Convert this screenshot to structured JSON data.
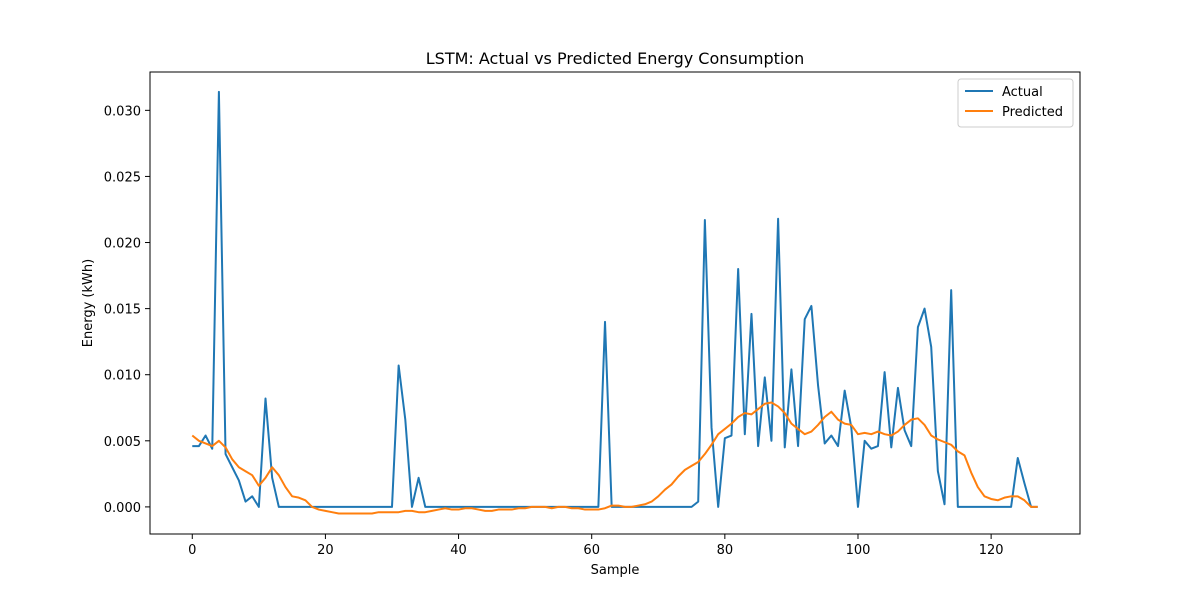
{
  "chart_data": {
    "type": "line",
    "title": "LSTM: Actual vs Predicted Energy Consumption",
    "xlabel": "Sample",
    "ylabel": "Energy (kWh)",
    "xlim": [
      -6.35,
      133.35
    ],
    "ylim": [
      -0.00205,
      0.0329
    ],
    "x_ticks": [
      0,
      20,
      40,
      60,
      80,
      100,
      120
    ],
    "x_tick_labels": [
      "0",
      "20",
      "40",
      "60",
      "80",
      "100",
      "120"
    ],
    "y_ticks": [
      0.0,
      0.005,
      0.01,
      0.015,
      0.02,
      0.025,
      0.03
    ],
    "y_tick_labels": [
      "0.000",
      "0.005",
      "0.010",
      "0.015",
      "0.020",
      "0.025",
      "0.030"
    ],
    "grid": false,
    "legend_position": "top-right",
    "series": [
      {
        "name": "Actual",
        "color": "#1f77b4",
        "values": [
          0.0046,
          0.0046,
          0.0054,
          0.0044,
          0.0314,
          0.004,
          0.003,
          0.002,
          0.0004,
          0.0008,
          0.0,
          0.0082,
          0.0022,
          0.0,
          0.0,
          0.0,
          0.0,
          0.0,
          0.0,
          0.0,
          0.0,
          0.0,
          0.0,
          0.0,
          0.0,
          0.0,
          0.0,
          0.0,
          0.0,
          0.0,
          0.0,
          0.0107,
          0.0066,
          0.0,
          0.0022,
          0.0,
          0.0,
          0.0,
          0.0,
          0.0,
          0.0,
          0.0,
          0.0,
          0.0,
          0.0,
          0.0,
          0.0,
          0.0,
          0.0,
          0.0,
          0.0,
          0.0,
          0.0,
          0.0,
          0.0,
          0.0,
          0.0,
          0.0,
          0.0,
          0.0,
          0.0,
          0.0,
          0.014,
          0.0,
          0.0,
          0.0,
          0.0,
          0.0,
          0.0,
          0.0,
          0.0,
          0.0,
          0.0,
          0.0,
          0.0,
          0.0,
          0.0004,
          0.0217,
          0.006,
          0.0,
          0.0052,
          0.0054,
          0.018,
          0.0055,
          0.0146,
          0.0046,
          0.0098,
          0.005,
          0.0218,
          0.0045,
          0.0104,
          0.0046,
          0.0142,
          0.0152,
          0.0092,
          0.0048,
          0.0054,
          0.0046,
          0.0088,
          0.006,
          0.0,
          0.005,
          0.0044,
          0.0046,
          0.0102,
          0.0045,
          0.009,
          0.0058,
          0.0046,
          0.0136,
          0.015,
          0.0121,
          0.0027,
          0.0002,
          0.0164,
          0.0,
          0.0,
          0.0,
          0.0,
          0.0,
          0.0,
          0.0,
          0.0,
          0.0,
          0.0037,
          0.0018,
          0.0,
          0.0
        ]
      },
      {
        "name": "Predicted",
        "color": "#ff7f0e",
        "values": [
          0.0054,
          0.005,
          0.0048,
          0.0046,
          0.005,
          0.0045,
          0.0036,
          0.003,
          0.0027,
          0.0024,
          0.0016,
          0.0022,
          0.003,
          0.0024,
          0.0015,
          0.0008,
          0.0007,
          0.0005,
          0.0,
          -0.0002,
          -0.0003,
          -0.0004,
          -0.0005,
          -0.0005,
          -0.0005,
          -0.0005,
          -0.0005,
          -0.0005,
          -0.0004,
          -0.0004,
          -0.0004,
          -0.0004,
          -0.0003,
          -0.0003,
          -0.0004,
          -0.0004,
          -0.0003,
          -0.0002,
          -0.0001,
          -0.0002,
          -0.0002,
          -0.0001,
          -0.0001,
          -0.0002,
          -0.0003,
          -0.0003,
          -0.0002,
          -0.0002,
          -0.0002,
          -0.0001,
          -0.0001,
          0.0,
          0.0,
          0.0,
          -0.0001,
          0.0,
          0.0,
          -0.0001,
          -0.0001,
          -0.0002,
          -0.0002,
          -0.0002,
          -0.0001,
          0.0001,
          0.0001,
          0.0,
          0.0,
          0.0001,
          0.0002,
          0.0004,
          0.0008,
          0.0013,
          0.0017,
          0.0023,
          0.0028,
          0.0031,
          0.0034,
          0.004,
          0.0047,
          0.0055,
          0.0059,
          0.0063,
          0.0068,
          0.0071,
          0.007,
          0.0074,
          0.0078,
          0.0079,
          0.0076,
          0.0071,
          0.0063,
          0.0059,
          0.0055,
          0.0057,
          0.0062,
          0.0068,
          0.0072,
          0.0066,
          0.0063,
          0.0062,
          0.0055,
          0.0056,
          0.0055,
          0.0057,
          0.0055,
          0.0054,
          0.0057,
          0.0062,
          0.0066,
          0.0067,
          0.0062,
          0.0054,
          0.0051,
          0.0049,
          0.0047,
          0.0042,
          0.0039,
          0.0026,
          0.0015,
          0.0008,
          0.0006,
          0.0005,
          0.0007,
          0.0008,
          0.0008,
          0.0005,
          0.0,
          0.0
        ]
      }
    ]
  }
}
